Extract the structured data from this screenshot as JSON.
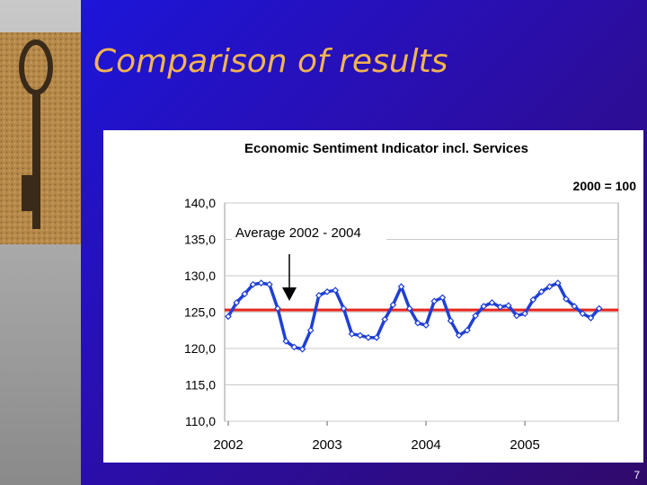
{
  "header": {
    "title": "Comparison of results",
    "page_number": "7"
  },
  "chart_data": {
    "type": "line",
    "title": "Economic Sentiment Indicator incl. Services",
    "note": "2000 = 100",
    "annotation": "Average 2002 - 2004",
    "average": 125.3,
    "average_color": "#e8231c",
    "categories": [
      "2002",
      null,
      null,
      null,
      null,
      null,
      null,
      null,
      null,
      null,
      null,
      null,
      "2003",
      null,
      null,
      null,
      null,
      null,
      null,
      null,
      null,
      null,
      null,
      null,
      "2004",
      null,
      null,
      null,
      null,
      null,
      null,
      null,
      null,
      null,
      null,
      null,
      "2005",
      null,
      null,
      null,
      null,
      null,
      null,
      null,
      null,
      null
    ],
    "series": [
      {
        "name": "Economic Sentiment Indicator",
        "color": "#1f3fd6",
        "values": [
          124.4,
          126.3,
          127.5,
          128.8,
          129.0,
          128.8,
          125.5,
          121.0,
          120.2,
          119.9,
          122.5,
          127.3,
          127.8,
          128.0,
          125.5,
          122.0,
          121.8,
          121.5,
          121.5,
          124.0,
          126.0,
          128.5,
          125.5,
          123.5,
          123.2,
          126.5,
          127.0,
          123.8,
          121.8,
          122.5,
          124.5,
          125.8,
          126.3,
          125.7,
          125.9,
          124.5,
          124.8,
          126.7,
          127.8,
          128.5,
          129.0,
          126.8,
          125.8,
          124.8,
          124.2,
          125.5
        ]
      }
    ],
    "ylim": [
      110,
      140
    ],
    "yticks": [
      {
        "value": 110,
        "label": "110,0"
      },
      {
        "value": 115,
        "label": "115,0"
      },
      {
        "value": 120,
        "label": "120,0"
      },
      {
        "value": 125,
        "label": "125,0"
      },
      {
        "value": 130,
        "label": "130,0"
      },
      {
        "value": 135,
        "label": "135,0"
      },
      {
        "value": 140,
        "label": "140,0"
      }
    ],
    "grid": true
  }
}
